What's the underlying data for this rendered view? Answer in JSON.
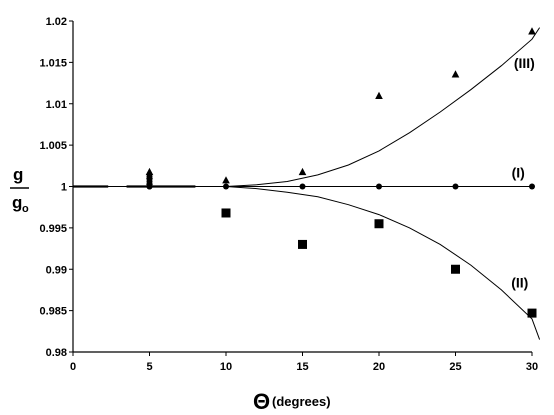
{
  "chart_data": {
    "type": "scatter",
    "xlabel": "(degrees)",
    "xlabel_symbol": "Θ",
    "ylabel_numerator": "g",
    "ylabel_denominator": "g",
    "ylabel_denominator_subscript": "o",
    "xlim": [
      0,
      30
    ],
    "ylim": [
      0.98,
      1.02
    ],
    "x_ticks": [
      "0",
      "5",
      "10",
      "15",
      "20",
      "25",
      "30"
    ],
    "y_ticks": [
      "0.98",
      "0.985",
      "0.99",
      "0.995",
      "1",
      "1.005",
      "1.01",
      "1.015",
      "1.02"
    ],
    "grid": false,
    "series": [
      {
        "name": "(I)",
        "marker": "circle",
        "points": [
          [
            5,
            1.0
          ],
          [
            10,
            1.0
          ],
          [
            15,
            1.0
          ],
          [
            20,
            1.0
          ],
          [
            25,
            1.0
          ],
          [
            30,
            1.0
          ]
        ],
        "curve": [
          [
            0,
            1.0
          ],
          [
            30,
            1.0
          ]
        ]
      },
      {
        "name": "(II)",
        "marker": "square",
        "points": [
          [
            10,
            0.9968
          ],
          [
            15,
            0.993
          ],
          [
            20,
            0.9955
          ],
          [
            25,
            0.99
          ],
          [
            30,
            0.9847
          ]
        ],
        "curve": [
          [
            0,
            1.0
          ],
          [
            10,
            1.0
          ],
          [
            12,
            0.99975
          ],
          [
            14,
            0.9993
          ],
          [
            16,
            0.99875
          ],
          [
            18,
            0.9978
          ],
          [
            20,
            0.9966
          ],
          [
            22,
            0.995
          ],
          [
            24,
            0.993
          ],
          [
            26,
            0.9905
          ],
          [
            28,
            0.9875
          ],
          [
            30,
            0.984
          ],
          [
            30.5,
            0.9815
          ]
        ]
      },
      {
        "name": "(III)",
        "marker": "triangle",
        "points": [
          [
            5,
            1.0017
          ],
          [
            10,
            1.0007
          ],
          [
            15,
            1.0017
          ],
          [
            20,
            1.0109
          ],
          [
            25,
            1.0135
          ],
          [
            30,
            1.0187
          ]
        ],
        "curve": [
          [
            0,
            1.0
          ],
          [
            10,
            1.0
          ],
          [
            12,
            1.0002
          ],
          [
            14,
            1.0006
          ],
          [
            16,
            1.0014
          ],
          [
            18,
            1.0026
          ],
          [
            20,
            1.0043
          ],
          [
            22,
            1.0065
          ],
          [
            24,
            1.009
          ],
          [
            26,
            1.0117
          ],
          [
            28,
            1.0146
          ],
          [
            30,
            1.0178
          ],
          [
            30.5,
            1.0192
          ]
        ]
      }
    ],
    "cluster_at_5": {
      "circles": [
        1.0,
        1.0003,
        1.0006,
        1.0009,
        1.0012
      ],
      "triangles": [
        1.0005,
        1.0012,
        1.0017
      ]
    },
    "curve_labels": [
      {
        "text": "(III)",
        "at": [
          29.5,
          1.0143
        ]
      },
      {
        "text": "(I)",
        "at": [
          29.1,
          1.0011
        ]
      },
      {
        "text": "(II)",
        "at": [
          29.2,
          0.9878
        ]
      }
    ]
  }
}
